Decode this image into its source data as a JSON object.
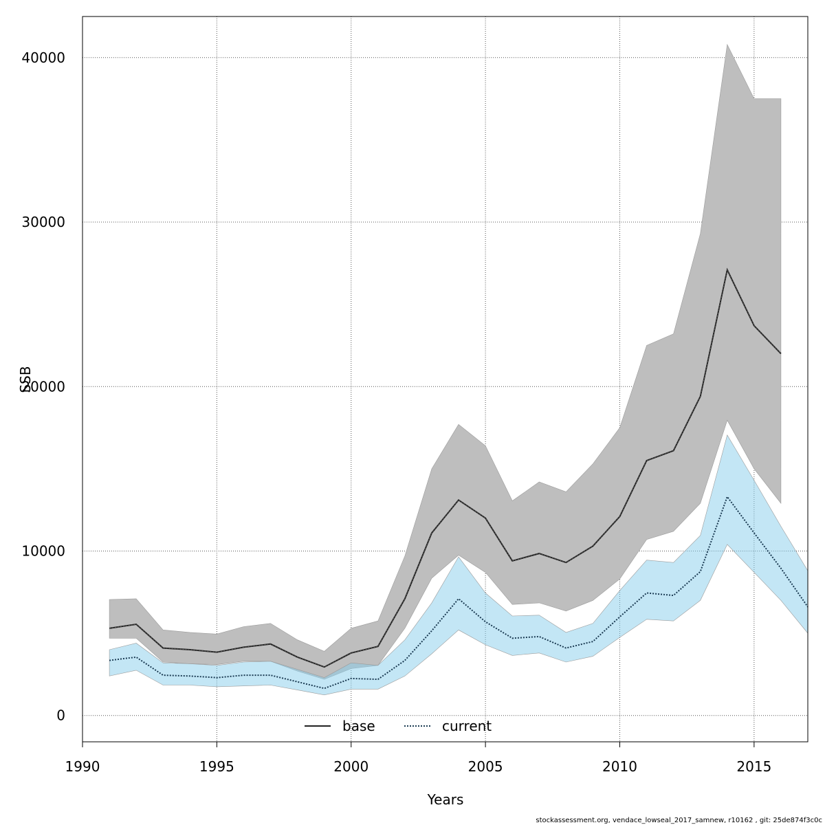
{
  "chart_data": {
    "type": "line",
    "title": "",
    "xlabel": "Years",
    "ylabel": "SSB",
    "xlim": [
      1990,
      2017
    ],
    "ylim": [
      -1600,
      42500
    ],
    "x_ticks": [
      1990,
      1995,
      2000,
      2005,
      2010,
      2015
    ],
    "y_ticks": [
      0,
      10000,
      20000,
      30000,
      40000
    ],
    "x_tick_labels": [
      "1990",
      "1995",
      "2000",
      "2005",
      "2010",
      "2015"
    ],
    "y_tick_labels": [
      "0",
      "10000",
      "20000",
      "30000",
      "40000"
    ],
    "grid": true,
    "legend_position": "bottom",
    "colors": {
      "base_band": "#bebebe",
      "base_line": "#222222",
      "current_band": "#87ceeb",
      "current_line": "#1a3a52"
    },
    "series": [
      {
        "name": "base",
        "style": "solid",
        "x": [
          1991,
          1992,
          1993,
          1994,
          1995,
          1996,
          1997,
          1998,
          1999,
          2000,
          2001,
          2002,
          2003,
          2004,
          2005,
          2006,
          2007,
          2008,
          2009,
          2010,
          2011,
          2012,
          2013,
          2014,
          2015,
          2016
        ],
        "values": [
          5300,
          5550,
          4100,
          4000,
          3850,
          4150,
          4350,
          3550,
          2950,
          3800,
          4200,
          7100,
          11100,
          13100,
          12000,
          9400,
          9850,
          9300,
          10300,
          12100,
          15500,
          16100,
          19400,
          27100,
          23700,
          22000
        ],
        "lower": [
          4700,
          4700,
          3250,
          3150,
          3100,
          3300,
          3300,
          2700,
          2200,
          2850,
          3050,
          5300,
          8350,
          9750,
          8700,
          6750,
          6850,
          6350,
          7000,
          8300,
          10700,
          11200,
          12900,
          17950,
          15000,
          12900
        ],
        "upper": [
          7050,
          7100,
          5200,
          5050,
          4950,
          5400,
          5600,
          4600,
          3900,
          5300,
          5750,
          9700,
          15000,
          17700,
          16400,
          13050,
          14200,
          13600,
          15300,
          17500,
          22500,
          23200,
          29300,
          40800,
          37500,
          37500
        ]
      },
      {
        "name": "current",
        "style": "dotted",
        "x": [
          1991,
          1992,
          1993,
          1994,
          1995,
          1996,
          1997,
          1998,
          1999,
          2000,
          2001,
          2002,
          2003,
          2004,
          2005,
          2006,
          2007,
          2008,
          2009,
          2010,
          2011,
          2012,
          2013,
          2014,
          2015,
          2016,
          2017
        ],
        "values": [
          3350,
          3550,
          2450,
          2400,
          2300,
          2450,
          2450,
          2050,
          1650,
          2250,
          2200,
          3350,
          5150,
          7100,
          5700,
          4700,
          4800,
          4100,
          4500,
          6000,
          7450,
          7300,
          8750,
          13300,
          11100,
          8950,
          6600
        ],
        "lower": [
          2400,
          2750,
          1850,
          1850,
          1750,
          1800,
          1850,
          1550,
          1250,
          1600,
          1600,
          2400,
          3750,
          5200,
          4300,
          3650,
          3800,
          3250,
          3600,
          4750,
          5850,
          5750,
          7000,
          10400,
          8700,
          7000,
          5000
        ],
        "upper": [
          4000,
          4400,
          3200,
          3150,
          3050,
          3250,
          3300,
          2800,
          2300,
          3200,
          3050,
          4600,
          6850,
          9650,
          7450,
          6050,
          6100,
          5050,
          5600,
          7600,
          9450,
          9300,
          10950,
          17050,
          14300,
          11500,
          8800
        ]
      }
    ]
  },
  "footer": "stockassessment.org, vendace_lowseal_2017_samnew, r10162 , git: 25de874f3c0c"
}
